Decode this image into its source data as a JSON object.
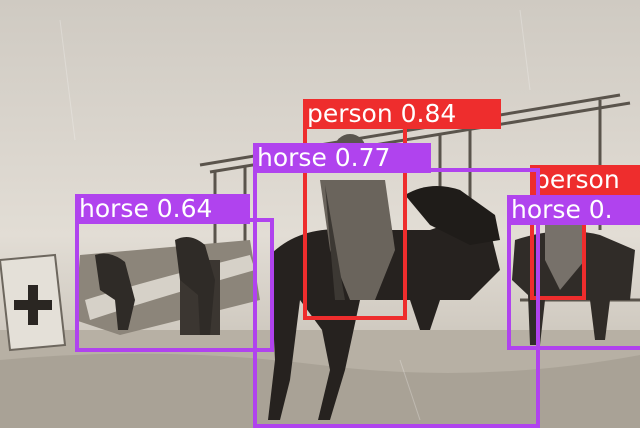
{
  "detections": [
    {
      "label": "person 0.84",
      "color": "#ee2d2d"
    },
    {
      "label": "horse 0.77",
      "color": "#b043ee"
    },
    {
      "label": "horse 0.64",
      "color": "#b043ee"
    },
    {
      "label": "person",
      "color": "#ee2d2d"
    },
    {
      "label": "horse 0.",
      "color": "#b043ee"
    }
  ]
}
